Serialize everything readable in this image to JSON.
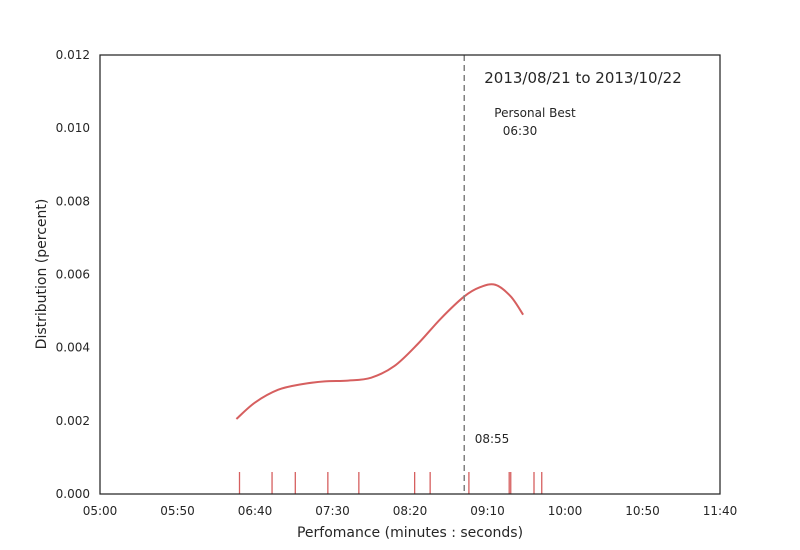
{
  "chart_data": {
    "type": "line",
    "title": "2013/08/21 to 2013/10/22",
    "xlabel": "Perfomance (minutes : seconds)",
    "ylabel": "Distribution (percent)",
    "xlim": [
      "05:00",
      "11:40"
    ],
    "ylim": [
      0,
      0.012
    ],
    "x_ticks": [
      "05:00",
      "05:50",
      "06:40",
      "07:30",
      "08:20",
      "09:10",
      "10:00",
      "10:50",
      "11:40"
    ],
    "y_ticks": [
      "0.000",
      "0.002",
      "0.004",
      "0.006",
      "0.008",
      "0.010",
      "0.012"
    ],
    "grid": false,
    "series": [
      {
        "x": [
          "06:28",
          "06:40",
          "06:55",
          "07:10",
          "07:25",
          "07:40",
          "07:55",
          "08:10",
          "08:25",
          "08:40",
          "08:55",
          "09:05",
          "09:15",
          "09:25",
          "09:33"
        ],
        "y": [
          0.00205,
          0.0025,
          0.00285,
          0.003,
          0.00308,
          0.0031,
          0.00318,
          0.0035,
          0.0041,
          0.0048,
          0.0054,
          0.00565,
          0.00572,
          0.0054,
          0.0049
        ],
        "color": "#d65f5f"
      }
    ],
    "rug": [
      "06:30",
      "06:51",
      "07:06",
      "07:27",
      "07:47",
      "08:23",
      "08:33",
      "08:58",
      "09:24",
      "09:25",
      "09:40",
      "09:45"
    ],
    "reference_line": {
      "x": "08:55",
      "label": "08:55",
      "color": "#808080"
    },
    "annotation": {
      "label": "Personal Best",
      "value": "06:30"
    }
  }
}
